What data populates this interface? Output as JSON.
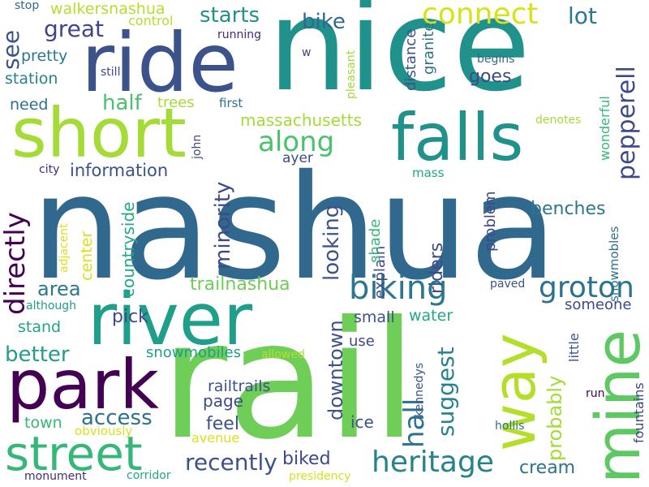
{
  "cloud": {
    "words": [
      {
        "text": "nashua",
        "color": "#31688e"
      },
      {
        "text": "nice",
        "color": "#21918c"
      },
      {
        "text": "rail",
        "color": "#6ece58"
      },
      {
        "text": "ride",
        "color": "#3b528b"
      },
      {
        "text": "river",
        "color": "#1f9e89"
      },
      {
        "text": "short",
        "color": "#a5db36"
      },
      {
        "text": "park",
        "color": "#440154"
      },
      {
        "text": "falls",
        "color": "#21918c"
      },
      {
        "text": "way",
        "color": "#b5de2b"
      },
      {
        "text": "mine",
        "color": "#5ec962"
      },
      {
        "text": "street",
        "color": "#35b779"
      },
      {
        "text": "biking",
        "color": "#2a788e"
      },
      {
        "text": "heritage",
        "color": "#26828e"
      },
      {
        "text": "connect",
        "color": "#d8e219"
      },
      {
        "text": "groton",
        "color": "#2c728e"
      },
      {
        "text": "directly",
        "color": "#440154"
      },
      {
        "text": "along",
        "color": "#4ac16d"
      },
      {
        "text": "pepperell",
        "color": "#3e4989"
      },
      {
        "text": "starts",
        "color": "#21918c"
      },
      {
        "text": "see",
        "color": "#3b528b"
      },
      {
        "text": "great",
        "color": "#414487"
      },
      {
        "text": "bike",
        "color": "#31688e"
      },
      {
        "text": "lot",
        "color": "#2a788e"
      },
      {
        "text": "walkersnashua",
        "color": "#b5de2b"
      },
      {
        "text": "hall",
        "color": "#2c728e"
      },
      {
        "text": "suggest",
        "color": "#26828e"
      },
      {
        "text": "access",
        "color": "#2c728e"
      },
      {
        "text": "recently",
        "color": "#3b528b"
      },
      {
        "text": "biked",
        "color": "#3e4989"
      },
      {
        "text": "downtown",
        "color": "#3b528b"
      },
      {
        "text": "looking",
        "color": "#3b528b"
      },
      {
        "text": "probably",
        "color": "#a5db36"
      },
      {
        "text": "area",
        "color": "#2a788e"
      },
      {
        "text": "better",
        "color": "#1f9e89"
      },
      {
        "text": "trailnashua",
        "color": "#6ece58"
      },
      {
        "text": "minority",
        "color": "#3e4989"
      },
      {
        "text": "information",
        "color": "#3b528b"
      },
      {
        "text": "half",
        "color": "#4ac16d"
      },
      {
        "text": "massachusetts",
        "color": "#a5db36"
      },
      {
        "text": "page",
        "color": "#3e4989"
      },
      {
        "text": "feel",
        "color": "#3b528b"
      },
      {
        "text": "benches",
        "color": "#2a788e"
      },
      {
        "text": "riders",
        "color": "#3e4989"
      },
      {
        "text": "pick",
        "color": "#3e4989"
      },
      {
        "text": "station",
        "color": "#26828e"
      },
      {
        "text": "need",
        "color": "#2c728e"
      },
      {
        "text": "pretty",
        "color": "#2a788e"
      },
      {
        "text": "goes",
        "color": "#3e4989"
      },
      {
        "text": "cream",
        "color": "#2c728e"
      },
      {
        "text": "ice",
        "color": "#3b528b"
      },
      {
        "text": "stand",
        "color": "#20a486"
      },
      {
        "text": "town",
        "color": "#35b779"
      },
      {
        "text": "railtrails",
        "color": "#3b528b"
      },
      {
        "text": "snowmobiles",
        "color": "#1f9e89"
      },
      {
        "text": "countryside",
        "color": "#22a884"
      },
      {
        "text": "center",
        "color": "#d8e219"
      },
      {
        "text": "small",
        "color": "#3b528b"
      },
      {
        "text": "water",
        "color": "#22a884"
      },
      {
        "text": "someone",
        "color": "#3e4989"
      },
      {
        "text": "use",
        "color": "#3e4989"
      },
      {
        "text": "explain",
        "color": "#3e4989"
      },
      {
        "text": "shade",
        "color": "#35b779"
      },
      {
        "text": "problem",
        "color": "#3e4989"
      },
      {
        "text": "distance",
        "color": "#3b528b"
      },
      {
        "text": "granite",
        "color": "#2c728e"
      },
      {
        "text": "trees",
        "color": "#a5db36"
      },
      {
        "text": "control",
        "color": "#b5de2b"
      },
      {
        "text": "running",
        "color": "#482878"
      },
      {
        "text": "first",
        "color": "#2c728e"
      },
      {
        "text": "still",
        "color": "#3e4989"
      },
      {
        "text": "begins",
        "color": "#31688e"
      },
      {
        "text": "pleasant",
        "color": "#a5db36"
      },
      {
        "text": "stop",
        "color": "#31688e"
      },
      {
        "text": "w",
        "color": "#414487"
      },
      {
        "text": "wonderful",
        "color": "#35b779"
      },
      {
        "text": "denotes",
        "color": "#a5db36"
      },
      {
        "text": "ayer",
        "color": "#3e4989"
      },
      {
        "text": "mass",
        "color": "#22a884"
      },
      {
        "text": "city",
        "color": "#482878"
      },
      {
        "text": "john",
        "color": "#3e4989"
      },
      {
        "text": "adjacent",
        "color": "#d8e219"
      },
      {
        "text": "although",
        "color": "#1f9e89"
      },
      {
        "text": "snowmobles",
        "color": "#2c728e"
      },
      {
        "text": "paved",
        "color": "#3b528b"
      },
      {
        "text": "little",
        "color": "#3b528b"
      },
      {
        "text": "fountains",
        "color": "#414487"
      },
      {
        "text": "run",
        "color": "#440154"
      },
      {
        "text": "hollis",
        "color": "#2c728e"
      },
      {
        "text": "kennedys",
        "color": "#3b528b"
      },
      {
        "text": "allowed",
        "color": "#b5de2b"
      },
      {
        "text": "avenue",
        "color": "#d8e219"
      },
      {
        "text": "obviously",
        "color": "#d8e219"
      },
      {
        "text": "corridor",
        "color": "#22a884"
      },
      {
        "text": "monument",
        "color": "#482878"
      },
      {
        "text": "presidency",
        "color": "#d8e219"
      }
    ]
  }
}
